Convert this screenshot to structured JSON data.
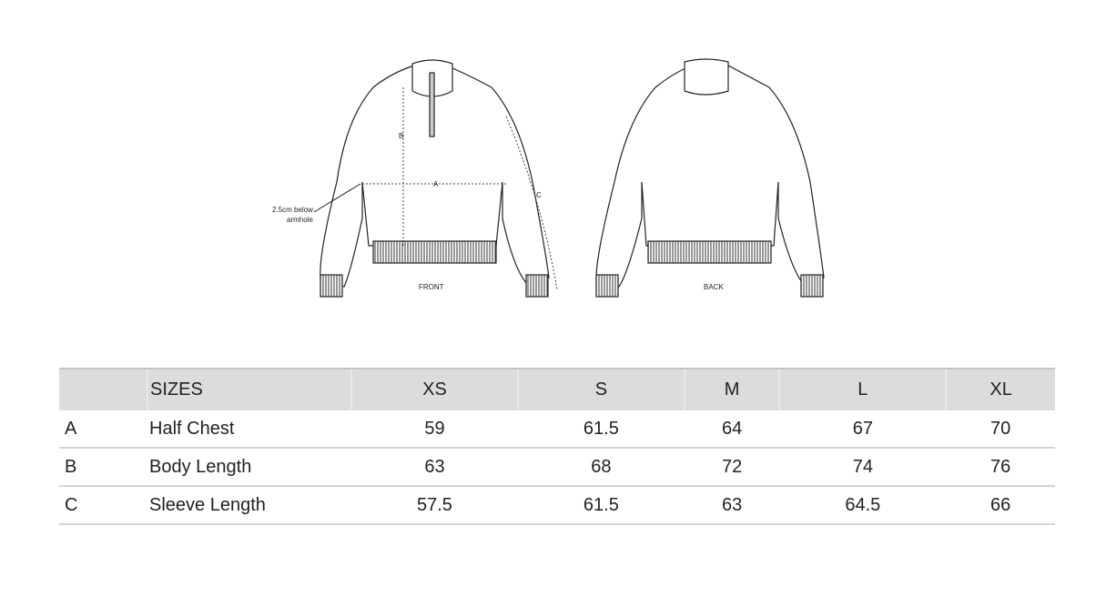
{
  "illustration": {
    "front_label": "FRONT",
    "back_label": "BACK",
    "annotation": "2.5cm below armhole",
    "annotation_line1": "2.5cm below",
    "annotation_line2": "armhole",
    "markers": [
      "A",
      "B",
      "C"
    ]
  },
  "table": {
    "headers": [
      "",
      "SIZES",
      "XS",
      "S",
      "M",
      "L",
      "XL"
    ],
    "rows": [
      {
        "key": "A",
        "label": "Half Chest",
        "values": [
          "59",
          "61.5",
          "64",
          "67",
          "70"
        ]
      },
      {
        "key": "B",
        "label": "Body Length",
        "values": [
          "63",
          "68",
          "72",
          "74",
          "76"
        ]
      },
      {
        "key": "C",
        "label": "Sleeve Length",
        "values": [
          "57.5",
          "61.5",
          "63",
          "64.5",
          "66"
        ]
      }
    ]
  }
}
